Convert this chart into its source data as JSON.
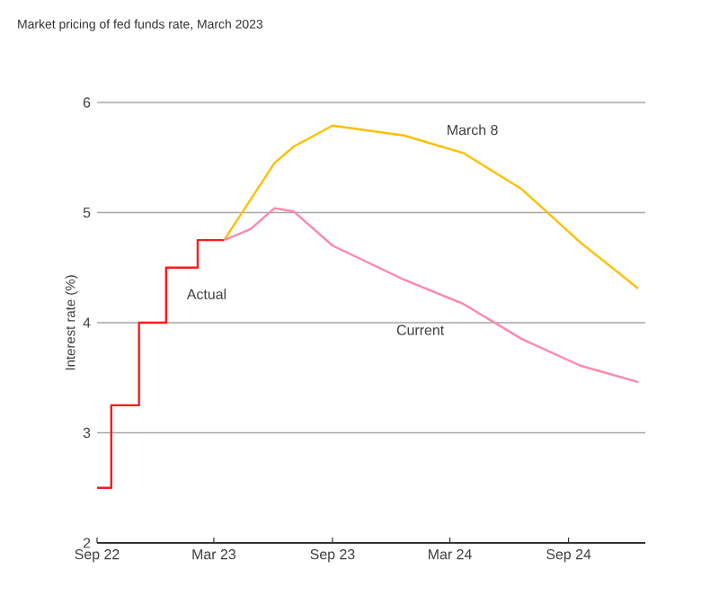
{
  "chart_data": {
    "type": "line",
    "title": "Market pricing of fed funds rate, March 2023",
    "ylabel": "Interest rate (%)",
    "xlim": [
      "2022-09-01",
      "2024-12-29"
    ],
    "ylim": [
      2,
      6
    ],
    "yticks": [
      2,
      3,
      4,
      5,
      6
    ],
    "xticks": [
      {
        "value": "2022-09-01",
        "label": "Sep 22"
      },
      {
        "value": "2023-03-01",
        "label": "Mar 23"
      },
      {
        "value": "2023-09-01",
        "label": "Sep 23"
      },
      {
        "value": "2024-03-01",
        "label": "Mar 24"
      },
      {
        "value": "2024-09-01",
        "label": "Sep 24"
      }
    ],
    "grid": "y",
    "legend": false,
    "series": [
      {
        "name": "Actual",
        "type": "step",
        "color": "#ff1a1a",
        "x": [
          "2022-09-01",
          "2022-09-23",
          "2022-11-05",
          "2022-12-17",
          "2023-02-04",
          "2023-03-17"
        ],
        "values": [
          2.5,
          3.25,
          4.0,
          4.5,
          4.75,
          4.75
        ]
      },
      {
        "name": "March 8",
        "color": "#ffc000",
        "x": [
          "2023-03-17",
          "2023-06-03",
          "2023-07-03",
          "2023-09-01",
          "2023-12-21",
          "2024-03-22",
          "2024-06-21",
          "2024-09-19",
          "2024-12-18"
        ],
        "values": [
          4.75,
          5.45,
          5.6,
          5.79,
          5.7,
          5.54,
          5.21,
          4.73,
          4.31
        ]
      },
      {
        "name": "Current",
        "color": "#ff88aa",
        "x": [
          "2023-03-17",
          "2023-04-27",
          "2023-06-03",
          "2023-07-03",
          "2023-09-01",
          "2023-12-21",
          "2024-03-22",
          "2024-06-21",
          "2024-09-19",
          "2024-12-18"
        ],
        "values": [
          4.75,
          4.85,
          5.04,
          5.01,
          4.7,
          4.39,
          4.17,
          3.85,
          3.61,
          3.46
        ]
      }
    ]
  }
}
